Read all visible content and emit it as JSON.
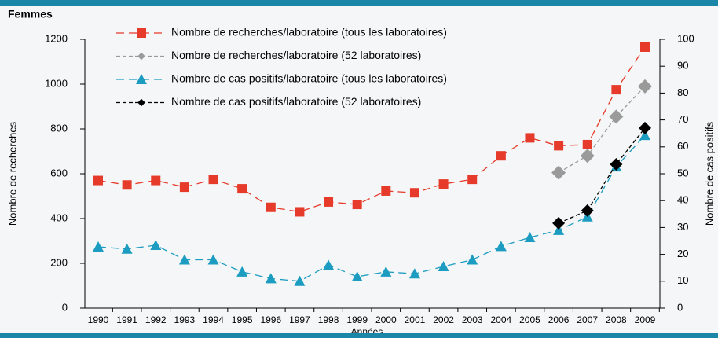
{
  "chart_data": {
    "type": "line",
    "title": "Femmes",
    "xlabel": "Années",
    "ylabel": "Nombre de recherches",
    "y2label": "Nombre de cas positifs",
    "categories": [
      "1990",
      "1991",
      "1992",
      "1993",
      "1994",
      "1995",
      "1996",
      "1997",
      "1998",
      "1999",
      "2000",
      "2001",
      "2002",
      "2003",
      "2004",
      "2005",
      "2006",
      "2007",
      "2008",
      "2009"
    ],
    "ylim": [
      0,
      1200
    ],
    "yticks": [
      0,
      200,
      400,
      600,
      800,
      1000,
      1200
    ],
    "y2lim": [
      0,
      100
    ],
    "y2ticks": [
      0,
      10,
      20,
      30,
      40,
      50,
      60,
      70,
      80,
      90,
      100
    ],
    "legend": "top-left",
    "series": [
      {
        "name": "Nombre de recherches/laboratoire (tous les laboratoires)",
        "color": "#e63b2a",
        "marker": "square",
        "axis": "y",
        "values": [
          570,
          550,
          570,
          540,
          575,
          533,
          450,
          430,
          474,
          463,
          523,
          515,
          554,
          575,
          680,
          760,
          725,
          730,
          975,
          1165
        ]
      },
      {
        "name": "Nombre de recherches/laboratoire (52 laboratoires)",
        "color": "#9a9a9a",
        "marker": "diamond",
        "axis": "y",
        "values": [
          null,
          null,
          null,
          null,
          null,
          null,
          null,
          null,
          null,
          null,
          null,
          null,
          null,
          null,
          null,
          null,
          605,
          680,
          855,
          990
        ]
      },
      {
        "name": "Nombre de cas positifs/laboratoire (tous les laboratoires)",
        "color": "#1b9cc0",
        "marker": "triangle",
        "axis": "y2",
        "values": [
          22.8,
          22,
          23.4,
          18,
          18,
          13.5,
          11,
          10,
          16,
          11.7,
          13.5,
          12.8,
          15.5,
          18,
          23,
          26.3,
          29,
          34,
          52.6,
          64.3
        ]
      },
      {
        "name": "Nombre de cas positifs/laboratoire (52 laboratoires)",
        "color": "#000000",
        "marker": "diamond",
        "axis": "y2",
        "values": [
          null,
          null,
          null,
          null,
          null,
          null,
          null,
          null,
          null,
          null,
          null,
          null,
          null,
          null,
          null,
          null,
          31.6,
          36.3,
          53.5,
          67
        ]
      }
    ]
  }
}
